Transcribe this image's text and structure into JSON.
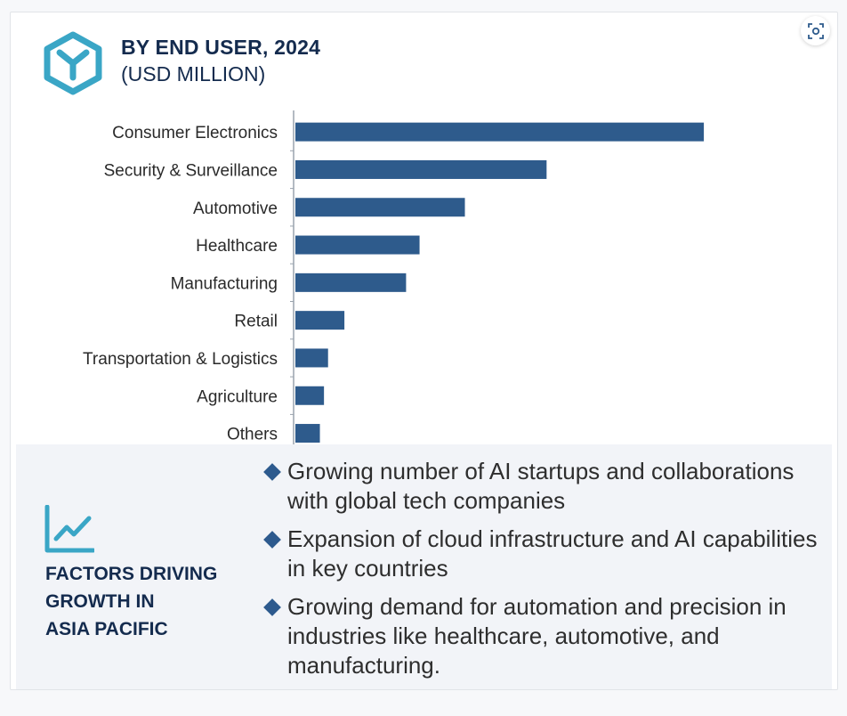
{
  "header": {
    "title": "BY END USER, 2024",
    "subtitle": "(USD MILLION)",
    "logo_icon": "hexagon-logo-icon",
    "fullscreen_icon": "focus-scan-icon"
  },
  "colors": {
    "bar": "#2e5b8c",
    "title": "#142b4e",
    "logo": "#3aa6c6",
    "panel_bg": "#f2f4f8"
  },
  "chart_data": {
    "type": "bar",
    "orientation": "horizontal",
    "title": "BY END USER, 2024",
    "subtitle": "(USD MILLION)",
    "categories": [
      "Consumer Electronics",
      "Security & Surveillance",
      "Automotive",
      "Healthcare",
      "Manufacturing",
      "Retail",
      "Transportation & Logistics",
      "Agriculture",
      "Others"
    ],
    "values": [
      100,
      61.5,
      41.5,
      30.4,
      27.1,
      12,
      8,
      7,
      6
    ],
    "value_axis": "relative scale (no value labels shown)",
    "xlim": [
      0,
      110
    ],
    "grid": false,
    "legend": "none"
  },
  "factors": {
    "icon": "trend-line-icon",
    "title": "FACTORS DRIVING\nGROWTH IN\nASIA PACIFIC",
    "items": [
      "Growing number of AI startups and collaborations with global tech companies",
      "Expansion of cloud infrastructure and AI capabilities in key countries",
      "Growing demand for automation and precision in industries like healthcare, automotive, and manufacturing."
    ]
  }
}
